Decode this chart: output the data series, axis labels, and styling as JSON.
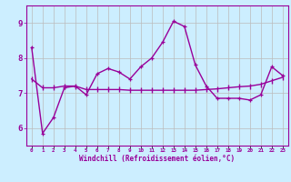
{
  "xlabel": "Windchill (Refroidissement éolien,°C)",
  "background_color": "#cceeff",
  "line_color": "#990099",
  "x_hours": [
    0,
    1,
    2,
    3,
    4,
    5,
    6,
    7,
    8,
    9,
    10,
    11,
    12,
    13,
    14,
    15,
    16,
    17,
    18,
    19,
    20,
    21,
    22,
    23
  ],
  "y_actual": [
    8.3,
    5.85,
    6.3,
    7.15,
    7.2,
    6.95,
    7.55,
    7.7,
    7.6,
    7.4,
    7.75,
    8.0,
    8.45,
    9.05,
    8.9,
    7.8,
    7.2,
    6.85,
    6.85,
    6.85,
    6.8,
    6.95,
    7.75,
    7.5
  ],
  "y_trend": [
    7.4,
    7.15,
    7.15,
    7.2,
    7.2,
    7.1,
    7.1,
    7.1,
    7.1,
    7.08,
    7.08,
    7.08,
    7.08,
    7.08,
    7.08,
    7.08,
    7.1,
    7.12,
    7.15,
    7.18,
    7.2,
    7.25,
    7.35,
    7.45
  ],
  "ylim": [
    5.5,
    9.5
  ],
  "xlim": [
    -0.5,
    23.5
  ],
  "yticks": [
    6,
    7,
    8,
    9
  ],
  "xtick_labels": [
    "0",
    "1",
    "2",
    "3",
    "4",
    "5",
    "6",
    "7",
    "8",
    "9",
    "10",
    "11",
    "12",
    "13",
    "14",
    "15",
    "16",
    "17",
    "18",
    "19",
    "20",
    "21",
    "22",
    "23"
  ],
  "grid_color": "#bbbbbb",
  "marker_size": 2.5,
  "line_width": 1.0
}
